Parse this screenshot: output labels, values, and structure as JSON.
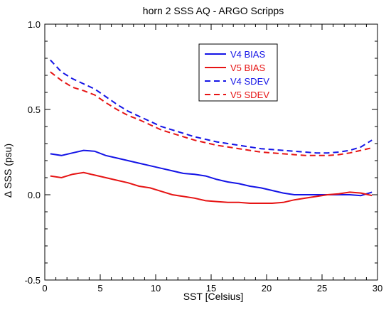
{
  "chart_data": {
    "type": "line",
    "title": "horn 2 SSS AQ - ARGO Scripps",
    "xlabel": "SST [Celsius]",
    "ylabel": "Δ SSS (psu)",
    "xlim": [
      0,
      30
    ],
    "ylim": [
      -0.5,
      1.0
    ],
    "xticks": [
      0,
      5,
      10,
      15,
      20,
      25,
      30
    ],
    "yticks": [
      -0.5,
      0.0,
      0.5,
      1.0
    ],
    "xtick_labels": [
      "0",
      "5",
      "10",
      "15",
      "20",
      "25",
      "30"
    ],
    "ytick_labels": [
      "-0.5",
      "0.0",
      "0.5",
      "1.0"
    ],
    "grid": false,
    "legend_position": "top-right",
    "series": [
      {
        "name": "V4 BIAS",
        "color": "#1414e6",
        "dash": "solid",
        "x": [
          0.5,
          1.5,
          2.5,
          3.5,
          4.5,
          5.5,
          6.5,
          7.5,
          8.5,
          9.5,
          10.5,
          11.5,
          12.5,
          13.5,
          14.5,
          15.5,
          16.5,
          17.5,
          18.5,
          19.5,
          20.5,
          21.5,
          22.5,
          23.5,
          24.5,
          25.5,
          26.5,
          27.5,
          28.5,
          29.5
        ],
        "y": [
          0.24,
          0.23,
          0.245,
          0.26,
          0.255,
          0.23,
          0.215,
          0.2,
          0.185,
          0.17,
          0.155,
          0.14,
          0.125,
          0.12,
          0.11,
          0.09,
          0.075,
          0.065,
          0.05,
          0.04,
          0.025,
          0.01,
          0.0,
          0.0,
          0.0,
          0.0,
          0.0,
          0.0,
          -0.005,
          0.015
        ]
      },
      {
        "name": "V5 BIAS",
        "color": "#e61414",
        "dash": "solid",
        "x": [
          0.5,
          1.5,
          2.5,
          3.5,
          4.5,
          5.5,
          6.5,
          7.5,
          8.5,
          9.5,
          10.5,
          11.5,
          12.5,
          13.5,
          14.5,
          15.5,
          16.5,
          17.5,
          18.5,
          19.5,
          20.5,
          21.5,
          22.5,
          23.5,
          24.5,
          25.5,
          26.5,
          27.5,
          28.5,
          29.5
        ],
        "y": [
          0.11,
          0.1,
          0.12,
          0.13,
          0.115,
          0.1,
          0.085,
          0.07,
          0.05,
          0.04,
          0.02,
          0.0,
          -0.01,
          -0.02,
          -0.035,
          -0.04,
          -0.045,
          -0.045,
          -0.05,
          -0.05,
          -0.05,
          -0.045,
          -0.03,
          -0.02,
          -0.01,
          0.0,
          0.005,
          0.015,
          0.01,
          -0.005
        ]
      },
      {
        "name": "V4 SDEV",
        "color": "#1414e6",
        "dash": "dashed",
        "x": [
          0.5,
          1.5,
          2.5,
          3.5,
          4.5,
          5.5,
          6.5,
          7.5,
          8.5,
          9.5,
          10.5,
          11.5,
          12.5,
          13.5,
          14.5,
          15.5,
          16.5,
          17.5,
          18.5,
          19.5,
          20.5,
          21.5,
          22.5,
          23.5,
          24.5,
          25.5,
          26.5,
          27.5,
          28.5,
          29.5
        ],
        "y": [
          0.79,
          0.72,
          0.68,
          0.65,
          0.62,
          0.575,
          0.53,
          0.49,
          0.46,
          0.43,
          0.4,
          0.38,
          0.36,
          0.34,
          0.325,
          0.31,
          0.3,
          0.29,
          0.28,
          0.27,
          0.265,
          0.26,
          0.255,
          0.25,
          0.245,
          0.245,
          0.25,
          0.26,
          0.28,
          0.32
        ]
      },
      {
        "name": "V5 SDEV",
        "color": "#e61414",
        "dash": "dashed",
        "x": [
          0.5,
          1.5,
          2.5,
          3.5,
          4.5,
          5.5,
          6.5,
          7.5,
          8.5,
          9.5,
          10.5,
          11.5,
          12.5,
          13.5,
          14.5,
          15.5,
          16.5,
          17.5,
          18.5,
          19.5,
          20.5,
          21.5,
          22.5,
          23.5,
          24.5,
          25.5,
          26.5,
          27.5,
          28.5,
          29.5
        ],
        "y": [
          0.72,
          0.67,
          0.63,
          0.61,
          0.585,
          0.54,
          0.5,
          0.465,
          0.44,
          0.41,
          0.38,
          0.36,
          0.34,
          0.32,
          0.305,
          0.29,
          0.28,
          0.27,
          0.26,
          0.25,
          0.245,
          0.24,
          0.235,
          0.23,
          0.23,
          0.23,
          0.235,
          0.245,
          0.26,
          0.275
        ]
      }
    ]
  }
}
